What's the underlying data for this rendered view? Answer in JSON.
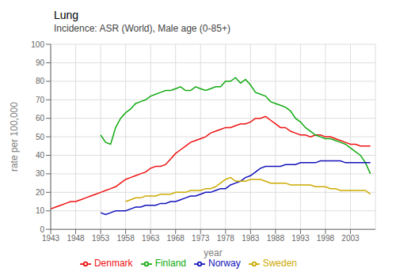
{
  "chart_data": {
    "type": "line",
    "title": "Lung",
    "subtitle": "Incidence: ASR (World), Male age (0-85+)",
    "xlabel": "year",
    "ylabel": "rate per 100,000",
    "xlim": [
      1943,
      2008
    ],
    "ylim": [
      0,
      100
    ],
    "xticks": [
      1943,
      1948,
      1953,
      1958,
      1963,
      1968,
      1973,
      1978,
      1983,
      1988,
      1993,
      1998,
      2003
    ],
    "yticks": [
      0,
      10,
      20,
      30,
      40,
      50,
      60,
      70,
      80,
      90,
      100
    ],
    "grid": true,
    "legend": "bottom",
    "series": [
      {
        "name": "Denmark",
        "color": "#ee1111",
        "x": [
          1943,
          1944,
          1945,
          1946,
          1947,
          1948,
          1949,
          1950,
          1951,
          1952,
          1953,
          1954,
          1955,
          1956,
          1957,
          1958,
          1959,
          1960,
          1961,
          1962,
          1963,
          1964,
          1965,
          1966,
          1967,
          1968,
          1969,
          1970,
          1971,
          1972,
          1973,
          1974,
          1975,
          1976,
          1977,
          1978,
          1979,
          1980,
          1981,
          1982,
          1983,
          1984,
          1985,
          1986,
          1987,
          1988,
          1989,
          1990,
          1991,
          1992,
          1993,
          1994,
          1995,
          1996,
          1997,
          1998,
          1999,
          2000,
          2001,
          2002,
          2003,
          2004,
          2005,
          2006,
          2007
        ],
        "values": [
          11,
          12,
          13,
          14,
          15,
          15,
          16,
          17,
          18,
          19,
          20,
          21,
          22,
          23,
          25,
          27,
          28,
          29,
          30,
          31,
          33,
          34,
          34,
          35,
          38,
          41,
          43,
          45,
          47,
          48,
          49,
          50,
          52,
          53,
          54,
          55,
          55,
          56,
          57,
          57,
          58,
          60,
          60,
          61,
          59,
          57,
          55,
          55,
          53,
          52,
          51,
          51,
          50,
          51,
          51,
          50,
          50,
          49,
          48,
          47,
          46,
          46,
          45,
          45,
          45
        ]
      },
      {
        "name": "Finland",
        "color": "#11aa11",
        "x": [
          1953,
          1954,
          1955,
          1956,
          1957,
          1958,
          1959,
          1960,
          1961,
          1962,
          1963,
          1964,
          1965,
          1966,
          1967,
          1968,
          1969,
          1970,
          1971,
          1972,
          1973,
          1974,
          1975,
          1976,
          1977,
          1978,
          1979,
          1980,
          1981,
          1982,
          1983,
          1984,
          1985,
          1986,
          1987,
          1988,
          1989,
          1990,
          1991,
          1992,
          1993,
          1994,
          1995,
          1996,
          1997,
          1998,
          1999,
          2000,
          2001,
          2002,
          2003,
          2004,
          2005,
          2006,
          2007
        ],
        "values": [
          51,
          47,
          46,
          55,
          60,
          63,
          65,
          68,
          69,
          70,
          72,
          73,
          74,
          75,
          75,
          76,
          77,
          75,
          75,
          77,
          76,
          75,
          76,
          77,
          77,
          80,
          80,
          82,
          79,
          81,
          78,
          74,
          73,
          72,
          69,
          68,
          67,
          66,
          64,
          60,
          58,
          55,
          53,
          51,
          50,
          49,
          49,
          48,
          47,
          46,
          44,
          42,
          40,
          36,
          30
        ]
      },
      {
        "name": "Norway",
        "color": "#1111bb",
        "x": [
          1953,
          1954,
          1955,
          1956,
          1957,
          1958,
          1959,
          1960,
          1961,
          1962,
          1963,
          1964,
          1965,
          1966,
          1967,
          1968,
          1969,
          1970,
          1971,
          1972,
          1973,
          1974,
          1975,
          1976,
          1977,
          1978,
          1979,
          1980,
          1981,
          1982,
          1983,
          1984,
          1985,
          1986,
          1987,
          1988,
          1989,
          1990,
          1991,
          1992,
          1993,
          1994,
          1995,
          1996,
          1997,
          1998,
          1999,
          2000,
          2001,
          2002,
          2003,
          2004,
          2005,
          2006,
          2007
        ],
        "values": [
          9,
          8,
          9,
          10,
          10,
          10,
          11,
          12,
          12,
          13,
          13,
          13,
          14,
          14,
          15,
          15,
          16,
          17,
          18,
          18,
          19,
          20,
          20,
          21,
          22,
          22,
          24,
          25,
          26,
          28,
          29,
          31,
          33,
          34,
          34,
          34,
          34,
          35,
          35,
          35,
          36,
          36,
          36,
          36,
          37,
          37,
          37,
          37,
          37,
          36,
          36,
          36,
          36,
          36,
          36
        ]
      },
      {
        "name": "Sweden",
        "color": "#ccaa00",
        "x": [
          1958,
          1959,
          1960,
          1961,
          1962,
          1963,
          1964,
          1965,
          1966,
          1967,
          1968,
          1969,
          1970,
          1971,
          1972,
          1973,
          1974,
          1975,
          1976,
          1977,
          1978,
          1979,
          1980,
          1981,
          1982,
          1983,
          1984,
          1985,
          1986,
          1987,
          1988,
          1989,
          1990,
          1991,
          1992,
          1993,
          1994,
          1995,
          1996,
          1997,
          1998,
          1999,
          2000,
          2001,
          2002,
          2003,
          2004,
          2005,
          2006,
          2007
        ],
        "values": [
          15,
          16,
          17,
          17,
          18,
          18,
          18,
          19,
          19,
          19,
          20,
          20,
          20,
          21,
          21,
          21,
          22,
          22,
          23,
          25,
          27,
          28,
          26,
          26,
          26,
          27,
          27,
          27,
          26,
          25,
          25,
          25,
          25,
          24,
          24,
          24,
          24,
          24,
          23,
          23,
          23,
          22,
          22,
          21,
          21,
          21,
          21,
          21,
          21,
          19
        ]
      }
    ]
  }
}
